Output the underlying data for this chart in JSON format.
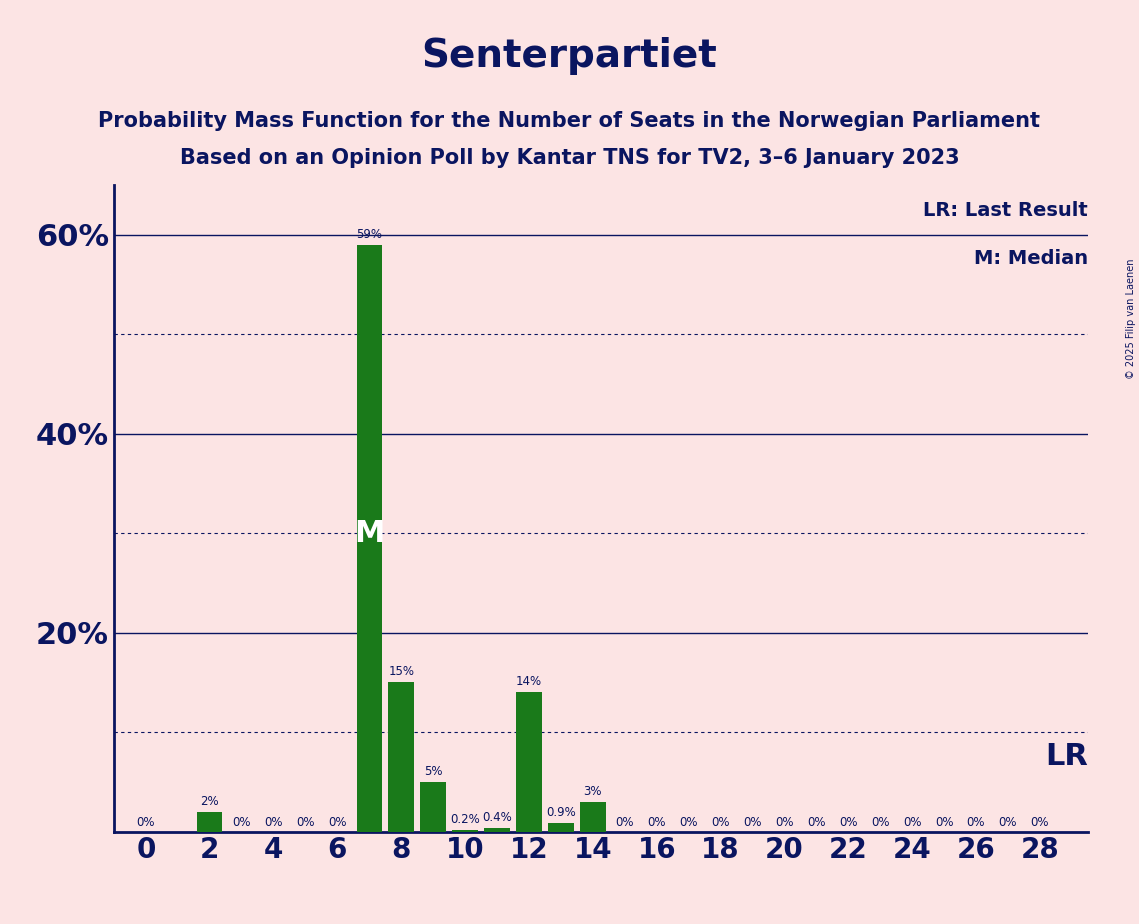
{
  "title": "Senterpartiet",
  "subtitle1": "Probability Mass Function for the Number of Seats in the Norwegian Parliament",
  "subtitle2": "Based on an Opinion Poll by Kantar TNS for TV2, 3–6 January 2023",
  "copyright": "© 2025 Filip van Laenen",
  "background_color": "#fce4e4",
  "bar_color": "#1a7a1a",
  "title_color": "#0a1560",
  "text_color": "#0a1560",
  "x_values": [
    0,
    1,
    2,
    3,
    4,
    5,
    6,
    7,
    8,
    9,
    10,
    11,
    12,
    13,
    14,
    15,
    16,
    17,
    18,
    19,
    20,
    21,
    22,
    23,
    24,
    25,
    26,
    27,
    28
  ],
  "y_values": [
    0,
    0,
    2,
    0,
    0,
    0,
    0,
    59,
    15,
    5,
    0.2,
    0.4,
    14,
    0.9,
    3,
    0,
    0,
    0,
    0,
    0,
    0,
    0,
    0,
    0,
    0,
    0,
    0,
    0,
    0
  ],
  "bar_labels": [
    "0%",
    "",
    "2%",
    "0%",
    "0%",
    "0%",
    "0%",
    "59%",
    "15%",
    "5%",
    "0.2%",
    "0.4%",
    "14%",
    "0.9%",
    "3%",
    "0%",
    "0%",
    "0%",
    "0%",
    "0%",
    "0%",
    "0%",
    "0%",
    "0%",
    "0%",
    "0%",
    "0%",
    "0%",
    "0%"
  ],
  "show_label": [
    true,
    false,
    true,
    true,
    true,
    true,
    true,
    true,
    true,
    true,
    true,
    true,
    true,
    true,
    true,
    true,
    true,
    true,
    true,
    true,
    true,
    true,
    true,
    true,
    true,
    true,
    true,
    true,
    true
  ],
  "x_ticks": [
    0,
    2,
    4,
    6,
    8,
    10,
    12,
    14,
    16,
    18,
    20,
    22,
    24,
    26,
    28
  ],
  "ylim": [
    0,
    65
  ],
  "yticks": [
    20,
    40,
    60
  ],
  "ytick_labels": [
    "20%",
    "40%",
    "60%"
  ],
  "major_hlines": [
    20,
    40,
    60
  ],
  "minor_hlines": [
    10,
    30,
    50
  ],
  "lr_line_y": 8,
  "median_seat": 7,
  "lr_label": "LR",
  "lr_legend": "LR: Last Result",
  "median_legend": "M: Median",
  "bar_label_fontsize": 8.5,
  "ytick_fontsize": 22,
  "xtick_fontsize": 20,
  "title_fontsize": 28,
  "subtitle_fontsize": 15,
  "legend_fontsize": 14,
  "lr_fontsize": 22
}
